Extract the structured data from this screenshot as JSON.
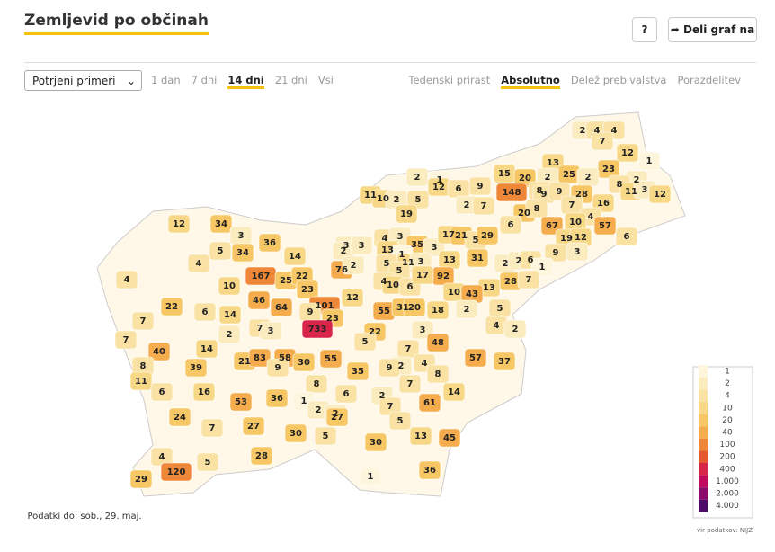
{
  "header": {
    "title": "Zemljevid po občinah",
    "help": "?",
    "share": "Deli graf na"
  },
  "controls": {
    "select": "Potrjeni primeri",
    "periods": [
      "1 dan",
      "7 dni",
      "14 dni",
      "21 dni",
      "Vsi"
    ],
    "active_period": 2,
    "modes": [
      "Tedenski prirast",
      "Absolutno",
      "Delež prebivalstva",
      "Porazdelitev"
    ],
    "active_mode": 1
  },
  "chart_data": {
    "type": "choropleth",
    "values": [
      2,
      4,
      4,
      7,
      12,
      1,
      13,
      23,
      15,
      20,
      2,
      25,
      2,
      8,
      2,
      8,
      9,
      148,
      9,
      9,
      28,
      11,
      3,
      12,
      2,
      1,
      12,
      6,
      11,
      10,
      2,
      5,
      2,
      7,
      20,
      8,
      7,
      16,
      19,
      4,
      10,
      67,
      57,
      6,
      12,
      34,
      3,
      36,
      3,
      4,
      3,
      35,
      3,
      17,
      21,
      5,
      29,
      6,
      19,
      12,
      2,
      3,
      13,
      5,
      34,
      4,
      14,
      1,
      13,
      31,
      9,
      3,
      2,
      2,
      6,
      1,
      4,
      76,
      2,
      5,
      11,
      3,
      92,
      28,
      7,
      10,
      167,
      25,
      22,
      5,
      4,
      10,
      6,
      17,
      13,
      23,
      12,
      10,
      43,
      22,
      6,
      14,
      46,
      64,
      101,
      9,
      55,
      31,
      20,
      18,
      2,
      5,
      23,
      7,
      2,
      7,
      3,
      733,
      22,
      3,
      4,
      2,
      5,
      7,
      40,
      14,
      21,
      83,
      58,
      9,
      30,
      55,
      7,
      48,
      2,
      4,
      9,
      35,
      57,
      37,
      8,
      39,
      8,
      11,
      7,
      6,
      16,
      8,
      53,
      36,
      1,
      6,
      2,
      7,
      61,
      14,
      24,
      2,
      2,
      27,
      5,
      7,
      27,
      30,
      5,
      13,
      45,
      30,
      4,
      5,
      28,
      120,
      36,
      29,
      1
    ],
    "legend": {
      "ticks": [
        1,
        2,
        4,
        10,
        20,
        40,
        100,
        200,
        400,
        {
          "value": 1000,
          "label": "1.000"
        },
        {
          "value": 2000,
          "label": "2.000"
        },
        {
          "value": 4000,
          "label": "4.000"
        }
      ],
      "colors": [
        "#fdf5dc",
        "#fbecc0",
        "#f9e2a4",
        "#f7d886",
        "#f6c764",
        "#f4ac4c",
        "#ee8838",
        "#e45a2e",
        "#d8264a",
        "#c20a5e",
        "#8b0a6a",
        "#4b0b66"
      ]
    },
    "date": "Podatki do: sob., 29. maj.",
    "source": "vir podatkov: NIJZ"
  }
}
